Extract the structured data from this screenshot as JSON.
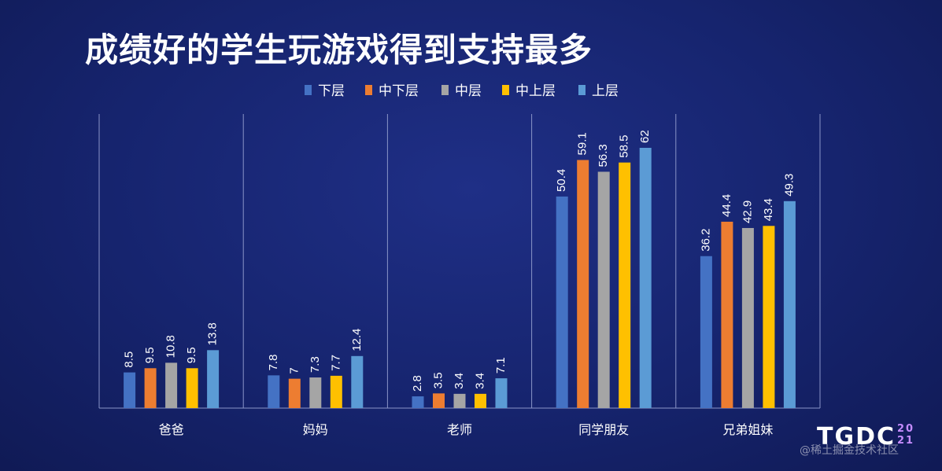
{
  "chart_data": {
    "type": "bar",
    "title": "成绩好的学生玩游戏得到支持最多",
    "categories": [
      "爸爸",
      "妈妈",
      "老师",
      "同学朋友",
      "兄弟姐妹"
    ],
    "series": [
      {
        "name": "下层",
        "color": "#4472c4",
        "values": [
          8.5,
          7.8,
          2.8,
          50.4,
          36.2
        ]
      },
      {
        "name": "中下层",
        "color": "#ed7d31",
        "values": [
          9.5,
          7,
          3.5,
          59.1,
          44.4
        ]
      },
      {
        "name": "中层",
        "color": "#a5a5a5",
        "values": [
          10.8,
          7.3,
          3.4,
          56.3,
          42.9
        ]
      },
      {
        "name": "中上层",
        "color": "#ffc000",
        "values": [
          9.5,
          7.7,
          3.4,
          58.5,
          43.4
        ]
      },
      {
        "name": "上层",
        "color": "#5b9bd5",
        "values": [
          13.8,
          12.4,
          7.1,
          62,
          49.3
        ]
      }
    ],
    "ylim": [
      0,
      62
    ],
    "legend": "top",
    "grid": false
  },
  "logo": {
    "text": "TGDC",
    "year": "20\n21"
  },
  "watermark": "@稀土掘金技术社区"
}
